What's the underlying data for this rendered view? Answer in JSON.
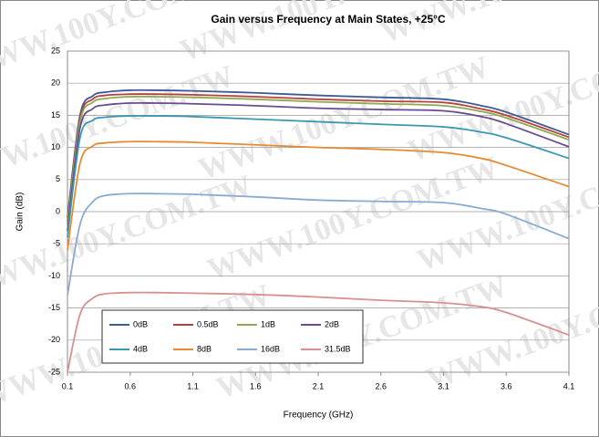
{
  "chart_data": {
    "type": "line",
    "title": "Gain versus Frequency at Main States, +25°C",
    "x_label": "Frequency (GHz)",
    "y_label": "Gain (dB)",
    "watermark": "WWW.100Y.COM.TW",
    "x": [
      0.1,
      0.2,
      0.3,
      0.4,
      0.6,
      0.8,
      1.1,
      1.6,
      2.1,
      2.6,
      3.1,
      3.4,
      3.6,
      4.1
    ],
    "series": [
      {
        "name": "0dB",
        "color": "#3c5a96",
        "values": [
          -1,
          15,
          18,
          18.6,
          18.9,
          18.9,
          18.8,
          18.5,
          18.1,
          17.8,
          17.5,
          16.5,
          15.5,
          12
        ]
      },
      {
        "name": "0.5dB",
        "color": "#b8403a",
        "values": [
          -1.5,
          14.5,
          17.5,
          18.1,
          18.3,
          18.3,
          18.2,
          17.9,
          17.5,
          17.2,
          17,
          16,
          15,
          11.6
        ]
      },
      {
        "name": "1dB",
        "color": "#8eaa50",
        "values": [
          -2,
          14,
          17,
          17.6,
          17.9,
          17.9,
          17.8,
          17.5,
          17.1,
          16.8,
          16.5,
          15.6,
          14.6,
          11.2
        ]
      },
      {
        "name": "2dB",
        "color": "#6a4a94",
        "values": [
          -3,
          13,
          16,
          16.6,
          16.9,
          16.9,
          16.8,
          16.5,
          16.1,
          15.9,
          15.7,
          14.8,
          13.7,
          10.1
        ]
      },
      {
        "name": "4dB",
        "color": "#3a98b0",
        "values": [
          -4,
          11.5,
          14.2,
          14.7,
          14.9,
          14.9,
          14.8,
          14.4,
          14,
          13.6,
          13.2,
          12.4,
          11.5,
          8.3
        ]
      },
      {
        "name": "8dB",
        "color": "#e88a30",
        "values": [
          -6,
          7.5,
          10.2,
          10.7,
          10.9,
          10.9,
          10.8,
          10.4,
          10,
          9.7,
          9.2,
          8.3,
          7.2,
          3.9
        ]
      },
      {
        "name": "16dB",
        "color": "#8aaad0",
        "values": [
          -13,
          -2,
          1.5,
          2.5,
          2.8,
          2.8,
          2.7,
          2.3,
          1.8,
          1.6,
          1.4,
          0.5,
          -0.4,
          -4.2
        ]
      },
      {
        "name": "31.5dB",
        "color": "#d89090",
        "values": [
          -25,
          -16,
          -13.5,
          -12.8,
          -12.6,
          -12.6,
          -12.7,
          -12.9,
          -13.3,
          -13.8,
          -14.2,
          -14.8,
          -15.7,
          -19.2
        ]
      }
    ],
    "xlim": [
      0.1,
      4.1
    ],
    "xticks": [
      0.1,
      0.6,
      1.1,
      1.6,
      2.1,
      2.6,
      3.1,
      3.6,
      4.1
    ],
    "ylim": [
      -25,
      25
    ],
    "yticks": [
      -25,
      -20,
      -15,
      -10,
      -5,
      0,
      5,
      10,
      15,
      20,
      25
    ],
    "grid": true
  }
}
